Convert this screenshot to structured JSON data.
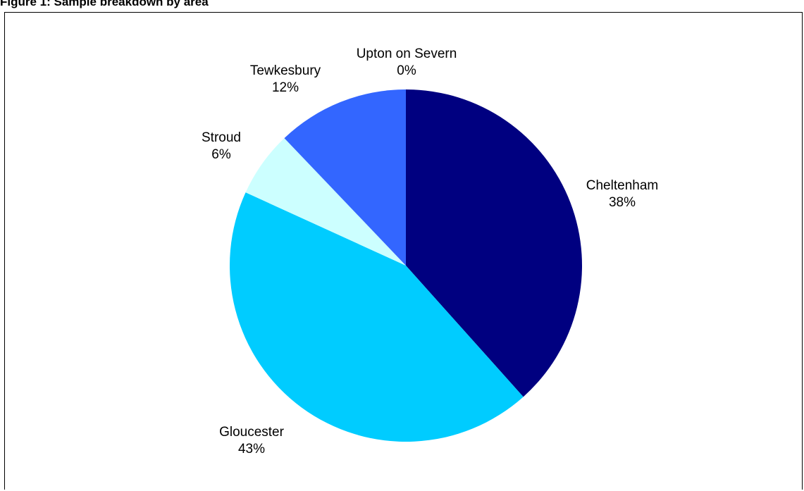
{
  "figure": {
    "title": "Figure 1: Sample breakdown by area"
  },
  "chart_data": {
    "type": "pie",
    "title": "Figure 1: Sample breakdown by area",
    "start_angle_deg": 0,
    "direction": "clockwise",
    "slices": [
      {
        "name": "Cheltenham",
        "value": 38,
        "label": "38%",
        "color": "#000080"
      },
      {
        "name": "Gloucester",
        "value": 43,
        "label": "43%",
        "color": "#00CCFF"
      },
      {
        "name": "Stroud",
        "value": 6,
        "label": "6%",
        "color": "#CCFFFF"
      },
      {
        "name": "Tewkesbury",
        "value": 12,
        "label": "12%",
        "color": "#3366FF"
      },
      {
        "name": "Upton on Severn",
        "value": 0,
        "label": "0%",
        "color": "#000080"
      }
    ]
  }
}
